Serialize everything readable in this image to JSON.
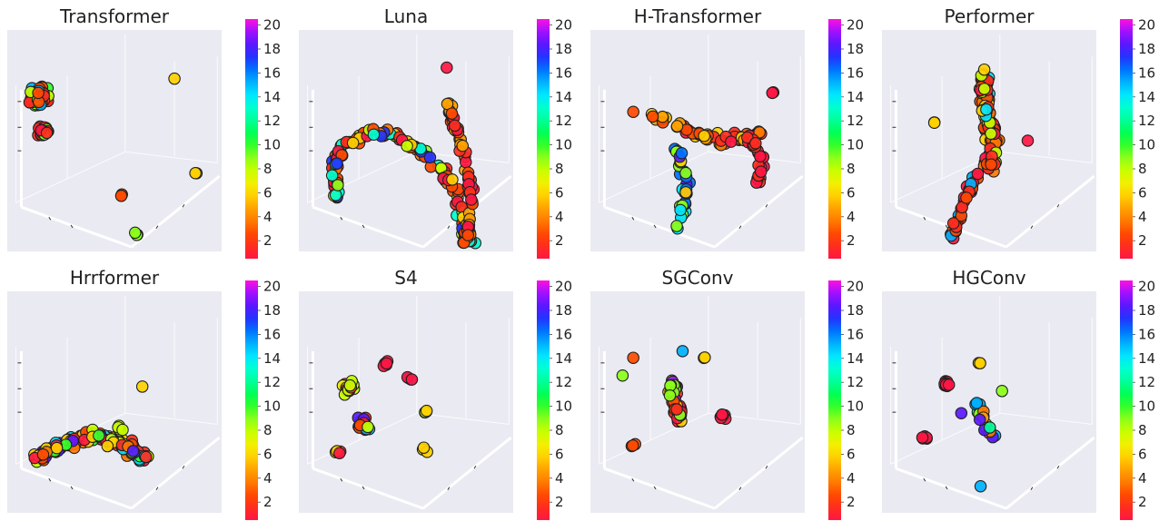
{
  "colorbar": {
    "ticks": [
      "20",
      "18",
      "16",
      "14",
      "12",
      "10",
      "8",
      "6",
      "4",
      "2"
    ],
    "tick_values": [
      20,
      18,
      16,
      14,
      12,
      10,
      8,
      6,
      4,
      2
    ],
    "range": [
      1,
      20
    ],
    "colors": [
      "#ff1744",
      "#ff2d1f",
      "#ff4a00",
      "#ff7a00",
      "#ffa200",
      "#ffd000",
      "#f2f000",
      "#c8ff00",
      "#8cff1a",
      "#34ff2a",
      "#00ff55",
      "#00ff9a",
      "#00ffd0",
      "#00e6ff",
      "#00b0ff",
      "#0072ff",
      "#2433ff",
      "#5a18ff",
      "#a010ff",
      "#ff10e0"
    ]
  },
  "chart_data": [
    {
      "type": "scatter",
      "title": "Transformer",
      "color_scale": [
        1,
        20
      ],
      "groups": [
        {
          "x": 0.15,
          "y": 0.3,
          "spread": 0.06,
          "count": 70,
          "colors": [
            1,
            2,
            3,
            10,
            8,
            15
          ]
        },
        {
          "x": 0.17,
          "y": 0.45,
          "spread": 0.04,
          "count": 25,
          "colors": [
            1,
            2,
            9
          ]
        },
        {
          "x": 0.53,
          "y": 0.75,
          "spread": 0.01,
          "count": 3,
          "colors": [
            3
          ]
        },
        {
          "x": 0.6,
          "y": 0.92,
          "spread": 0.01,
          "count": 3,
          "colors": [
            9,
            10
          ]
        },
        {
          "x": 0.88,
          "y": 0.65,
          "spread": 0.01,
          "count": 2,
          "colors": [
            6
          ]
        },
        {
          "x": 0.78,
          "y": 0.22,
          "spread": 0.01,
          "count": 1,
          "colors": [
            6
          ]
        }
      ]
    },
    {
      "type": "scatter",
      "title": "Luna",
      "color_scale": [
        1,
        20
      ],
      "groups": [
        {
          "path": [
            [
              0.19,
              0.77
            ],
            [
              0.16,
              0.64
            ],
            [
              0.2,
              0.52
            ],
            [
              0.33,
              0.46
            ],
            [
              0.45,
              0.47
            ],
            [
              0.57,
              0.55
            ],
            [
              0.67,
              0.63
            ],
            [
              0.73,
              0.72
            ],
            [
              0.77,
              0.88
            ],
            [
              0.8,
              0.95
            ]
          ],
          "spread": 0.03,
          "count": 130,
          "colors": [
            1,
            2,
            3,
            4,
            6,
            8,
            9,
            13,
            17
          ]
        },
        {
          "path": [
            [
              0.77,
              0.95
            ],
            [
              0.81,
              0.8
            ],
            [
              0.79,
              0.65
            ],
            [
              0.76,
              0.52
            ],
            [
              0.72,
              0.42
            ],
            [
              0.7,
              0.33
            ]
          ],
          "spread": 0.02,
          "count": 60,
          "colors": [
            1,
            2,
            3,
            5
          ]
        },
        {
          "x": 0.69,
          "y": 0.17,
          "spread": 0.01,
          "count": 1,
          "colors": [
            1
          ]
        }
      ]
    },
    {
      "type": "scatter",
      "title": "H-Transformer",
      "color_scale": [
        1,
        20
      ],
      "groups": [
        {
          "path": [
            [
              0.27,
              0.38
            ],
            [
              0.45,
              0.45
            ],
            [
              0.62,
              0.5
            ],
            [
              0.8,
              0.47
            ]
          ],
          "spread": 0.035,
          "count": 60,
          "colors": [
            1,
            2,
            3,
            4,
            5,
            6
          ]
        },
        {
          "path": [
            [
              0.4,
              0.55
            ],
            [
              0.45,
              0.68
            ],
            [
              0.43,
              0.78
            ],
            [
              0.4,
              0.92
            ]
          ],
          "spread": 0.03,
          "count": 30,
          "colors": [
            6,
            9,
            14,
            16,
            18
          ]
        },
        {
          "path": [
            [
              0.72,
              0.45
            ],
            [
              0.8,
              0.58
            ],
            [
              0.78,
              0.7
            ]
          ],
          "spread": 0.025,
          "count": 20,
          "colors": [
            1,
            2
          ]
        },
        {
          "x": 0.85,
          "y": 0.28,
          "spread": 0.01,
          "count": 2,
          "colors": [
            1
          ]
        },
        {
          "x": 0.2,
          "y": 0.37,
          "spread": 0.01,
          "count": 1,
          "colors": [
            3
          ]
        }
      ]
    },
    {
      "type": "scatter",
      "title": "Performer",
      "color_scale": [
        1,
        20
      ],
      "groups": [
        {
          "path": [
            [
              0.48,
              0.2
            ],
            [
              0.48,
              0.35
            ],
            [
              0.52,
              0.48
            ],
            [
              0.5,
              0.62
            ]
          ],
          "spread": 0.04,
          "count": 110,
          "colors": [
            1,
            2,
            3,
            4,
            6,
            8,
            14
          ]
        },
        {
          "path": [
            [
              0.45,
              0.63
            ],
            [
              0.4,
              0.74
            ],
            [
              0.36,
              0.84
            ],
            [
              0.33,
              0.94
            ]
          ],
          "spread": 0.025,
          "count": 35,
          "colors": [
            1,
            2,
            3,
            15
          ]
        },
        {
          "x": 0.25,
          "y": 0.42,
          "spread": 0.01,
          "count": 2,
          "colors": [
            6
          ]
        },
        {
          "x": 0.68,
          "y": 0.5,
          "spread": 0.01,
          "count": 1,
          "colors": [
            1
          ]
        }
      ]
    },
    {
      "type": "scatter",
      "title": "Hrrformer",
      "color_scale": [
        1,
        20
      ],
      "groups": [
        {
          "path": [
            [
              0.14,
              0.75
            ],
            [
              0.28,
              0.68
            ],
            [
              0.42,
              0.65
            ],
            [
              0.55,
              0.7
            ],
            [
              0.66,
              0.76
            ]
          ],
          "spread": 0.04,
          "count": 150,
          "colors": [
            1,
            2,
            3,
            4,
            6,
            8,
            10,
            14,
            18
          ]
        },
        {
          "x": 0.53,
          "y": 0.62,
          "spread": 0.02,
          "count": 6,
          "colors": [
            8,
            6
          ]
        },
        {
          "x": 0.63,
          "y": 0.43,
          "spread": 0.01,
          "count": 1,
          "colors": [
            6
          ]
        }
      ]
    },
    {
      "type": "scatter",
      "title": "S4",
      "color_scale": [
        1,
        20
      ],
      "groups": [
        {
          "x": 0.23,
          "y": 0.44,
          "spread": 0.05,
          "count": 14,
          "colors": [
            1,
            2,
            8,
            7
          ]
        },
        {
          "x": 0.3,
          "y": 0.6,
          "spread": 0.05,
          "count": 12,
          "colors": [
            1,
            2,
            3,
            15,
            18,
            8
          ]
        },
        {
          "x": 0.4,
          "y": 0.33,
          "spread": 0.02,
          "count": 5,
          "colors": [
            1
          ]
        },
        {
          "x": 0.52,
          "y": 0.39,
          "spread": 0.02,
          "count": 4,
          "colors": [
            1,
            15
          ]
        },
        {
          "x": 0.59,
          "y": 0.54,
          "spread": 0.02,
          "count": 4,
          "colors": [
            6,
            8,
            4
          ]
        },
        {
          "x": 0.58,
          "y": 0.71,
          "spread": 0.02,
          "count": 3,
          "colors": [
            6
          ]
        },
        {
          "x": 0.18,
          "y": 0.73,
          "spread": 0.03,
          "count": 4,
          "colors": [
            3,
            6,
            1
          ]
        }
      ]
    },
    {
      "type": "scatter",
      "title": "SGConv",
      "color_scale": [
        1,
        20
      ],
      "groups": [
        {
          "path": [
            [
              0.38,
              0.4
            ],
            [
              0.4,
              0.5
            ],
            [
              0.42,
              0.58
            ]
          ],
          "spread": 0.035,
          "count": 40,
          "colors": [
            1,
            2,
            3,
            6,
            19,
            9
          ]
        },
        {
          "x": 0.62,
          "y": 0.56,
          "spread": 0.03,
          "count": 6,
          "colors": [
            1
          ]
        },
        {
          "x": 0.2,
          "y": 0.7,
          "spread": 0.02,
          "count": 3,
          "colors": [
            3
          ]
        },
        {
          "x": 0.43,
          "y": 0.27,
          "spread": 0.01,
          "count": 1,
          "colors": [
            15
          ]
        },
        {
          "x": 0.53,
          "y": 0.3,
          "spread": 0.01,
          "count": 2,
          "colors": [
            6
          ]
        },
        {
          "x": 0.2,
          "y": 0.3,
          "spread": 0.01,
          "count": 1,
          "colors": [
            3
          ]
        },
        {
          "x": 0.15,
          "y": 0.38,
          "spread": 0.01,
          "count": 1,
          "colors": [
            9
          ]
        }
      ]
    },
    {
      "type": "scatter",
      "title": "HGConv",
      "color_scale": [
        1,
        20
      ],
      "groups": [
        {
          "x": 0.3,
          "y": 0.42,
          "spread": 0.02,
          "count": 8,
          "colors": [
            1
          ]
        },
        {
          "x": 0.2,
          "y": 0.66,
          "spread": 0.02,
          "count": 6,
          "colors": [
            1
          ]
        },
        {
          "path": [
            [
              0.45,
              0.5
            ],
            [
              0.48,
              0.6
            ],
            [
              0.52,
              0.66
            ]
          ],
          "spread": 0.03,
          "count": 22,
          "colors": [
            12,
            14,
            15,
            5,
            9,
            18,
            4,
            2
          ]
        },
        {
          "x": 0.37,
          "y": 0.55,
          "spread": 0.01,
          "count": 1,
          "colors": [
            18
          ]
        },
        {
          "x": 0.46,
          "y": 0.33,
          "spread": 0.01,
          "count": 2,
          "colors": [
            6
          ]
        },
        {
          "x": 0.56,
          "y": 0.45,
          "spread": 0.01,
          "count": 1,
          "colors": [
            9
          ]
        },
        {
          "x": 0.46,
          "y": 0.88,
          "spread": 0.01,
          "count": 1,
          "colors": [
            15
          ]
        }
      ]
    }
  ]
}
